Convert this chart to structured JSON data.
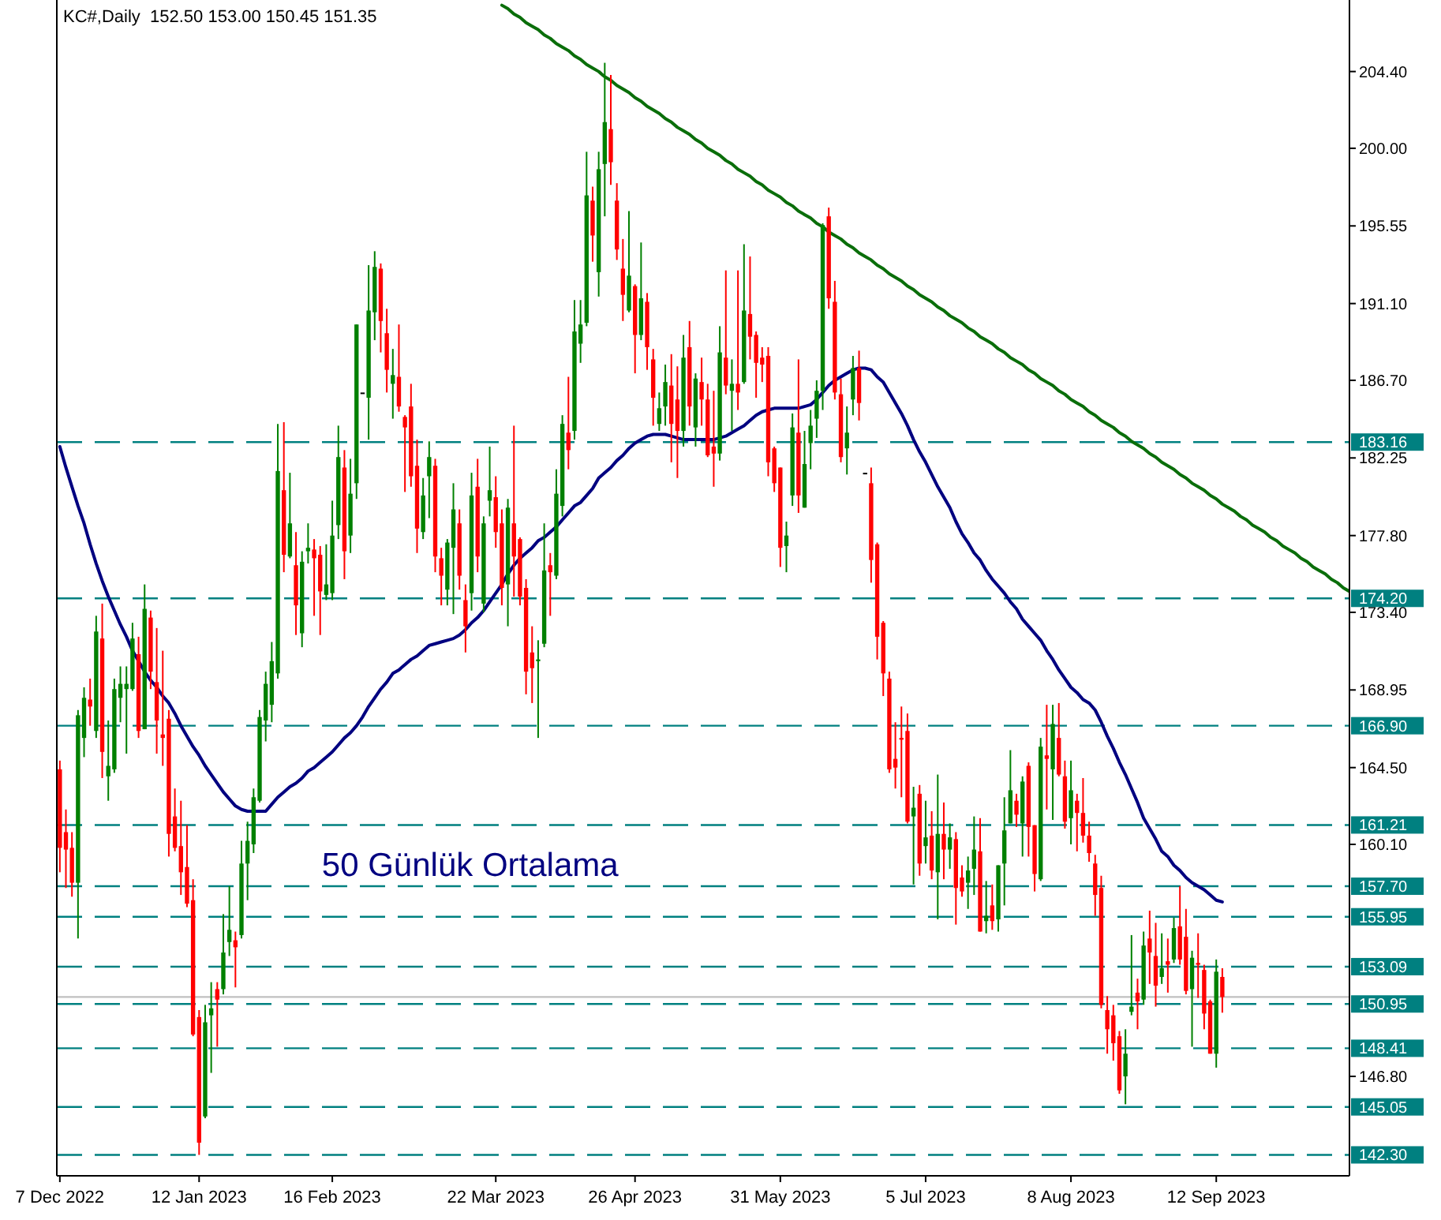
{
  "chart_data": {
    "type": "candlestick",
    "title": "KC#,Daily  152.50 153.00 150.45 151.35",
    "categories": [
      "7 Dec 2022",
      null,
      null,
      null,
      null,
      null,
      null,
      null,
      null,
      null,
      null,
      null,
      null,
      null,
      null,
      null,
      null,
      null,
      null,
      null,
      null,
      null,
      null,
      "12 Jan 2023",
      null,
      null,
      null,
      null,
      null,
      null,
      null,
      null,
      null,
      null,
      null,
      null,
      null,
      null,
      null,
      null,
      null,
      null,
      null,
      null,
      null,
      "16 Feb 2023",
      null,
      null,
      null,
      null,
      null,
      null,
      null,
      null,
      null,
      null,
      null,
      null,
      null,
      null,
      null,
      null,
      null,
      null,
      null,
      null,
      null,
      null,
      null,
      null,
      null,
      null,
      "22 Mar 2023",
      null,
      null,
      null,
      null,
      null,
      null,
      null,
      null,
      null,
      null,
      null,
      null,
      null,
      null,
      null,
      null,
      null,
      null,
      null,
      null,
      null,
      null,
      "26 Apr 2023",
      null,
      null,
      null,
      null,
      null,
      null,
      null,
      null,
      null,
      null,
      null,
      null,
      null,
      null,
      null,
      null,
      null,
      null,
      null,
      null,
      null,
      null,
      null,
      "31 May 2023",
      null,
      null,
      null,
      null,
      null,
      null,
      null,
      null,
      null,
      null,
      null,
      null,
      null,
      null,
      null,
      null,
      null,
      null,
      null,
      null,
      null,
      null,
      null,
      "5 Jul 2023",
      null,
      null,
      null,
      null,
      null,
      null,
      null,
      null,
      null,
      null,
      null,
      null,
      null,
      null,
      null,
      null,
      null,
      null,
      null,
      null,
      null,
      null,
      null,
      "8 Aug 2023",
      null,
      null,
      null,
      null,
      null,
      null,
      null,
      null,
      null,
      null,
      null,
      null,
      null,
      null,
      null,
      null,
      null,
      null,
      null,
      null,
      null,
      null,
      null,
      "12 Sep 2023",
      null,
      null,
      null,
      null,
      null,
      null,
      null,
      null,
      null,
      null,
      null,
      null,
      null,
      null,
      null,
      null,
      null,
      null,
      null,
      null,
      null,
      null
    ],
    "ohlc": [
      [
        164.4,
        164.9,
        158.5,
        159.9
      ],
      [
        160.8,
        162.1,
        157.6,
        159.8
      ],
      [
        159.9,
        160.8,
        157.1,
        157.9
      ],
      [
        157.9,
        167.8,
        154.7,
        167.5
      ],
      [
        166.2,
        169.1,
        165.1,
        168.5
      ],
      [
        168.4,
        169.6,
        166.9,
        168.0
      ],
      [
        166.6,
        173.2,
        166.2,
        172.3
      ],
      [
        171.9,
        173.9,
        163.9,
        165.4
      ],
      [
        164.0,
        167.2,
        162.6,
        164.6
      ],
      [
        164.4,
        169.6,
        164.2,
        169.0
      ],
      [
        168.5,
        170.3,
        167.1,
        169.3
      ],
      [
        169.0,
        170.3,
        165.3,
        169.3
      ],
      [
        169.0,
        172.8,
        168.9,
        171.9
      ],
      [
        171.0,
        172.0,
        166.2,
        166.6
      ],
      [
        166.7,
        175.0,
        166.7,
        173.6
      ],
      [
        173.1,
        173.5,
        169.0,
        170.0
      ],
      [
        169.4,
        172.5,
        165.3,
        167.2
      ],
      [
        166.4,
        171.2,
        164.6,
        166.2
      ],
      [
        167.3,
        167.8,
        159.4,
        160.7
      ],
      [
        161.7,
        163.3,
        159.7,
        159.9
      ],
      [
        160.0,
        162.6,
        157.2,
        158.5
      ],
      [
        158.8,
        161.2,
        156.5,
        156.7
      ],
      [
        156.9,
        158.1,
        149.1,
        149.2
      ],
      [
        150.2,
        150.6,
        142.3,
        143.0
      ],
      [
        144.5,
        150.9,
        144.4,
        149.9
      ],
      [
        150.3,
        152.2,
        147.0,
        150.7
      ],
      [
        151.8,
        152.2,
        148.5,
        151.2
      ],
      [
        151.8,
        156.1,
        151.5,
        153.9
      ],
      [
        154.5,
        157.7,
        153.7,
        155.2
      ],
      [
        154.6,
        155.1,
        151.9,
        154.2
      ],
      [
        154.9,
        160.3,
        154.7,
        159.0
      ],
      [
        159.0,
        161.4,
        156.9,
        160.3
      ],
      [
        160.1,
        163.3,
        159.6,
        162.8
      ],
      [
        162.6,
        167.8,
        162.5,
        167.4
      ],
      [
        167.2,
        170.0,
        166.0,
        169.3
      ],
      [
        168.1,
        171.7,
        167.1,
        170.6
      ],
      [
        169.9,
        184.2,
        169.6,
        181.5
      ],
      [
        180.4,
        184.3,
        175.7,
        176.7
      ],
      [
        176.6,
        181.4,
        176.5,
        178.5
      ],
      [
        176.1,
        178.0,
        172.1,
        173.8
      ],
      [
        172.2,
        176.9,
        171.4,
        176.3
      ],
      [
        176.9,
        178.5,
        176.2,
        177.1
      ],
      [
        177.0,
        177.6,
        173.2,
        176.5
      ],
      [
        176.7,
        177.2,
        172.1,
        174.6
      ],
      [
        174.4,
        177.3,
        174.1,
        175.0
      ],
      [
        174.5,
        179.8,
        174.1,
        177.8
      ],
      [
        178.4,
        184.1,
        177.6,
        182.3
      ],
      [
        181.7,
        182.7,
        175.3,
        176.9
      ],
      [
        177.8,
        182.2,
        176.8,
        180.2
      ],
      [
        180.8,
        189.9,
        179.9,
        189.9
      ],
      [
        186.0,
        186.0,
        186.0,
        186.0
      ],
      [
        185.7,
        193.3,
        183.3,
        190.7
      ],
      [
        190.6,
        194.1,
        189.0,
        193.2
      ],
      [
        193.1,
        193.4,
        188.3,
        190.1
      ],
      [
        189.4,
        190.8,
        186.0,
        187.3
      ],
      [
        186.5,
        188.5,
        184.5,
        187.0
      ],
      [
        186.9,
        189.9,
        184.9,
        185.2
      ],
      [
        184.6,
        184.7,
        180.3,
        184.0
      ],
      [
        185.2,
        186.5,
        180.6,
        181.2
      ],
      [
        181.8,
        183.3,
        176.8,
        178.2
      ],
      [
        178.0,
        181.1,
        177.6,
        180.1
      ],
      [
        181.2,
        183.2,
        178.8,
        182.3
      ],
      [
        181.8,
        182.2,
        175.7,
        176.6
      ],
      [
        176.5,
        177.1,
        173.8,
        175.5
      ],
      [
        174.7,
        177.6,
        173.8,
        177.4
      ],
      [
        177.1,
        180.8,
        173.3,
        179.3
      ],
      [
        178.5,
        179.3,
        174.7,
        175.5
      ],
      [
        174.1,
        175.0,
        171.1,
        172.6
      ],
      [
        174.5,
        181.4,
        173.5,
        180.1
      ],
      [
        180.6,
        182.2,
        175.7,
        176.6
      ],
      [
        173.9,
        178.9,
        173.4,
        178.5
      ],
      [
        179.8,
        182.9,
        178.9,
        180.4
      ],
      [
        180.0,
        181.2,
        177.1,
        178.0
      ],
      [
        178.5,
        179.3,
        173.8,
        174.8
      ],
      [
        175.0,
        179.9,
        172.6,
        179.4
      ],
      [
        178.5,
        184.1,
        174.3,
        176.6
      ],
      [
        177.6,
        177.7,
        173.8,
        174.3
      ],
      [
        174.8,
        175.3,
        168.7,
        170.0
      ],
      [
        171.1,
        172.6,
        168.2,
        170.2
      ],
      [
        170.6,
        171.8,
        166.2,
        170.7
      ],
      [
        171.6,
        178.5,
        171.4,
        175.8
      ],
      [
        176.1,
        176.8,
        173.2,
        175.7
      ],
      [
        175.5,
        181.6,
        175.3,
        180.2
      ],
      [
        179.5,
        184.7,
        178.9,
        184.2
      ],
      [
        183.7,
        186.9,
        181.6,
        182.7
      ],
      [
        183.8,
        191.3,
        183.3,
        189.5
      ],
      [
        188.8,
        191.3,
        187.7,
        189.9
      ],
      [
        190.0,
        199.8,
        189.8,
        197.3
      ],
      [
        197.0,
        197.8,
        193.5,
        195.0
      ],
      [
        192.9,
        199.8,
        191.5,
        198.8
      ],
      [
        199.1,
        204.9,
        196.1,
        201.5
      ],
      [
        201.1,
        204.2,
        197.9,
        199.2
      ],
      [
        197.0,
        198.0,
        193.6,
        194.2
      ],
      [
        193.1,
        194.8,
        190.1,
        191.6
      ],
      [
        190.7,
        196.4,
        190.6,
        192.7
      ],
      [
        192.1,
        192.2,
        187.1,
        189.3
      ],
      [
        189.3,
        194.6,
        189.0,
        191.4
      ],
      [
        191.2,
        191.7,
        187.3,
        188.6
      ],
      [
        187.9,
        188.5,
        184.1,
        185.7
      ],
      [
        184.2,
        186.0,
        183.8,
        185.1
      ],
      [
        185.2,
        187.6,
        184.1,
        186.6
      ],
      [
        186.4,
        188.2,
        182.0,
        184.2
      ],
      [
        185.6,
        187.5,
        181.1,
        183.8
      ],
      [
        183.8,
        189.3,
        182.9,
        188.0
      ],
      [
        188.6,
        190.1,
        184.1,
        185.2
      ],
      [
        184.0,
        187.1,
        182.9,
        186.8
      ],
      [
        186.6,
        188.0,
        184.1,
        185.6
      ],
      [
        185.6,
        186.5,
        182.3,
        182.4
      ],
      [
        182.9,
        186.1,
        180.6,
        182.5
      ],
      [
        182.5,
        189.8,
        182.1,
        188.3
      ],
      [
        188.0,
        193.0,
        185.9,
        186.4
      ],
      [
        186.1,
        187.9,
        183.8,
        186.5
      ],
      [
        186.5,
        193.0,
        185.0,
        186.0
      ],
      [
        186.6,
        194.5,
        186.5,
        190.7
      ],
      [
        190.5,
        193.8,
        187.9,
        189.2
      ],
      [
        189.3,
        189.5,
        185.7,
        187.7
      ],
      [
        188.0,
        188.6,
        186.6,
        187.6
      ],
      [
        188.1,
        188.6,
        181.2,
        182.0
      ],
      [
        182.8,
        182.9,
        180.3,
        180.8
      ],
      [
        181.7,
        181.7,
        176.0,
        177.1
      ],
      [
        177.2,
        178.6,
        175.7,
        177.8
      ],
      [
        180.1,
        184.8,
        179.5,
        184.0
      ],
      [
        183.7,
        187.9,
        179.1,
        180.1
      ],
      [
        179.4,
        183.8,
        179.4,
        181.9
      ],
      [
        183.1,
        185.0,
        181.6,
        184.1
      ],
      [
        184.5,
        186.7,
        183.4,
        186.1
      ],
      [
        186.1,
        195.7,
        185.0,
        195.6
      ],
      [
        196.1,
        196.6,
        190.8,
        191.4
      ],
      [
        191.2,
        192.4,
        185.6,
        186.0
      ],
      [
        185.9,
        186.8,
        182.0,
        182.3
      ],
      [
        182.8,
        185.2,
        181.3,
        183.7
      ],
      [
        185.6,
        188.1,
        184.7,
        187.4
      ],
      [
        187.4,
        188.4,
        184.4,
        185.4
      ],
      [
        181.4,
        181.4,
        181.4,
        181.4
      ],
      [
        180.8,
        181.7,
        175.1,
        176.4
      ],
      [
        177.3,
        177.4,
        170.7,
        172.0
      ],
      [
        172.8,
        172.9,
        168.6,
        169.9
      ],
      [
        169.6,
        170.0,
        164.2,
        164.4
      ],
      [
        165.0,
        167.1,
        163.3,
        164.5
      ],
      [
        166.2,
        168.0,
        162.8,
        166.1
      ],
      [
        166.6,
        167.6,
        161.3,
        161.4
      ],
      [
        161.7,
        163.4,
        157.8,
        162.2
      ],
      [
        163.0,
        163.5,
        158.3,
        159.0
      ],
      [
        160.0,
        162.6,
        159.0,
        160.5
      ],
      [
        160.6,
        162.0,
        158.1,
        158.6
      ],
      [
        158.5,
        164.1,
        155.8,
        160.7
      ],
      [
        160.7,
        162.5,
        158.1,
        159.8
      ],
      [
        159.8,
        161.3,
        158.7,
        160.5
      ],
      [
        160.4,
        160.8,
        155.5,
        157.6
      ],
      [
        158.2,
        158.9,
        157.1,
        157.4
      ],
      [
        157.9,
        159.4,
        156.4,
        158.6
      ],
      [
        158.7,
        161.7,
        157.2,
        159.8
      ],
      [
        159.7,
        161.6,
        155.1,
        155.1
      ],
      [
        155.7,
        158.0,
        155.0,
        156.0
      ],
      [
        156.6,
        157.8,
        155.2,
        155.7
      ],
      [
        155.8,
        158.9,
        155.1,
        158.9
      ],
      [
        159.0,
        162.8,
        156.6,
        160.9
      ],
      [
        161.3,
        165.5,
        161.3,
        163.2
      ],
      [
        162.6,
        163.0,
        161.1,
        161.8
      ],
      [
        161.3,
        164.0,
        159.4,
        163.7
      ],
      [
        164.6,
        164.8,
        159.4,
        161.1
      ],
      [
        161.2,
        161.2,
        157.4,
        158.4
      ],
      [
        158.1,
        166.2,
        158.0,
        165.7
      ],
      [
        165.2,
        168.1,
        162.1,
        165.0
      ],
      [
        164.4,
        168.1,
        161.5,
        167.0
      ],
      [
        166.2,
        168.2,
        164.0,
        164.1
      ],
      [
        164.0,
        164.9,
        161.0,
        161.4
      ],
      [
        161.6,
        164.9,
        160.1,
        163.2
      ],
      [
        162.6,
        163.0,
        159.7,
        161.9
      ],
      [
        161.9,
        163.9,
        160.2,
        160.6
      ],
      [
        160.6,
        161.4,
        159.1,
        159.6
      ],
      [
        159.0,
        159.5,
        156.0,
        157.2
      ],
      [
        157.6,
        158.3,
        150.7,
        150.9
      ],
      [
        150.6,
        151.4,
        148.1,
        149.5
      ],
      [
        150.3,
        150.9,
        147.7,
        148.7
      ],
      [
        149.1,
        149.4,
        145.8,
        146.0
      ],
      [
        146.8,
        149.5,
        145.2,
        148.1
      ],
      [
        150.5,
        154.9,
        150.3,
        150.8
      ],
      [
        151.6,
        152.4,
        149.5,
        151.1
      ],
      [
        151.2,
        155.1,
        150.9,
        154.3
      ],
      [
        154.7,
        156.3,
        152.1,
        153.9
      ],
      [
        153.7,
        155.6,
        150.8,
        152.0
      ],
      [
        152.5,
        155.0,
        152.1,
        153.0
      ],
      [
        153.4,
        154.7,
        151.6,
        153.2
      ],
      [
        153.5,
        155.9,
        153.3,
        155.3
      ],
      [
        155.4,
        157.7,
        153.2,
        153.5
      ],
      [
        154.8,
        156.4,
        151.5,
        151.7
      ],
      [
        151.8,
        154.0,
        148.5,
        153.6
      ],
      [
        153.3,
        155.0,
        151.3,
        153.2
      ],
      [
        152.9,
        153.2,
        149.5,
        150.4
      ],
      [
        151.1,
        151.2,
        148.1,
        148.1
      ],
      [
        148.1,
        153.5,
        147.3,
        152.8
      ],
      [
        152.5,
        153.0,
        150.45,
        151.35
      ],
      null,
      null,
      null,
      null,
      null,
      null,
      null,
      null,
      null,
      null,
      null,
      null,
      null,
      null,
      null,
      null,
      null,
      null,
      null,
      null,
      null
    ],
    "colors": [
      "#ff0000",
      "#ff0000",
      "#ff0000",
      "#008000",
      "#008000",
      "#ff0000",
      "#008000",
      "#ff0000",
      "#008000",
      "#008000",
      "#008000",
      "#008000",
      "#008000",
      "#ff0000",
      "#008000",
      "#ff0000",
      "#ff0000",
      "#ff0000",
      "#ff0000",
      "#ff0000",
      "#ff0000",
      "#ff0000",
      "#ff0000",
      "#ff0000",
      "#008000",
      "#008000",
      "#ff0000",
      "#008000",
      "#008000",
      "#ff0000",
      "#008000",
      "#008000",
      "#008000",
      "#008000",
      "#008000",
      "#008000",
      "#008000",
      "#ff0000",
      "#008000",
      "#ff0000",
      "#008000",
      "#008000",
      "#ff0000",
      "#ff0000",
      "#008000",
      "#008000",
      "#008000",
      "#ff0000",
      "#008000",
      "#008000",
      "#000000",
      "#008000",
      "#008000",
      "#ff0000",
      "#ff0000",
      "#008000",
      "#ff0000",
      "#ff0000",
      "#ff0000",
      "#ff0000",
      "#008000",
      "#008000",
      "#ff0000",
      "#ff0000",
      "#008000",
      "#008000",
      "#ff0000",
      "#ff0000",
      "#008000",
      "#ff0000",
      "#008000",
      "#008000",
      "#ff0000",
      "#ff0000",
      "#008000",
      "#ff0000",
      "#ff0000",
      "#ff0000",
      "#ff0000",
      "#008000",
      "#008000",
      "#ff0000",
      "#008000",
      "#008000",
      "#ff0000",
      "#008000",
      "#008000",
      "#008000",
      "#ff0000",
      "#008000",
      "#008000",
      "#ff0000",
      "#ff0000",
      "#ff0000",
      "#008000",
      "#ff0000",
      "#008000",
      "#ff0000",
      "#ff0000",
      "#008000",
      "#008000",
      "#ff0000",
      "#ff0000",
      "#008000",
      "#ff0000",
      "#008000",
      "#ff0000",
      "#ff0000",
      "#ff0000",
      "#008000",
      "#ff0000",
      "#008000",
      "#ff0000",
      "#008000",
      "#ff0000",
      "#ff0000",
      "#ff0000",
      "#ff0000",
      "#ff0000",
      "#ff0000",
      "#008000",
      "#008000",
      "#ff0000",
      "#008000",
      "#008000",
      "#008000",
      "#008000",
      "#ff0000",
      "#ff0000",
      "#ff0000",
      "#008000",
      "#008000",
      "#ff0000",
      "#000000",
      "#ff0000",
      "#ff0000",
      "#ff0000",
      "#ff0000",
      "#ff0000",
      "#ff0000",
      "#ff0000",
      "#008000",
      "#ff0000",
      "#008000",
      "#ff0000",
      "#008000",
      "#ff0000",
      "#008000",
      "#ff0000",
      "#ff0000",
      "#008000",
      "#008000",
      "#ff0000",
      "#008000",
      "#ff0000",
      "#008000",
      "#008000",
      "#008000",
      "#ff0000",
      "#008000",
      "#ff0000",
      "#ff0000",
      "#008000",
      "#ff0000",
      "#008000",
      "#ff0000",
      "#ff0000",
      "#008000",
      "#ff0000",
      "#ff0000",
      "#ff0000",
      "#ff0000",
      "#ff0000",
      "#ff0000",
      "#ff0000",
      "#ff0000",
      "#008000",
      "#008000",
      "#ff0000",
      "#008000",
      "#ff0000",
      "#ff0000",
      "#008000",
      "#ff0000",
      "#008000",
      "#ff0000",
      "#ff0000",
      "#008000",
      "#ff0000",
      "#ff0000",
      "#ff0000",
      "#008000",
      "#ff0000",
      null,
      null,
      null,
      null,
      null,
      null,
      null,
      null,
      null,
      null,
      null,
      null,
      null,
      null,
      null,
      null,
      null,
      null,
      null,
      null,
      null
    ],
    "series": [
      {
        "type": "line",
        "name": "50 Günlük Ortalama",
        "color": "#000080",
        "values": [
          182.9,
          181.7,
          180.6,
          179.5,
          178.5,
          177.3,
          176.2,
          175.2,
          174.3,
          173.5,
          172.7,
          172.0,
          171.2,
          170.6,
          170.0,
          169.5,
          169.1,
          168.6,
          168.2,
          167.6,
          166.9,
          166.3,
          165.7,
          165.2,
          164.6,
          164.1,
          163.6,
          163.1,
          162.7,
          162.3,
          162.1,
          162.0,
          162.0,
          162.0,
          162.0,
          162.4,
          162.8,
          163.1,
          163.4,
          163.6,
          163.9,
          164.3,
          164.5,
          164.8,
          165.1,
          165.4,
          165.8,
          166.2,
          166.5,
          166.9,
          167.4,
          168.0,
          168.5,
          169.0,
          169.4,
          169.9,
          170.1,
          170.4,
          170.7,
          170.9,
          171.2,
          171.5,
          171.6,
          171.7,
          171.8,
          171.9,
          172.1,
          172.4,
          172.8,
          173.1,
          173.5,
          174.0,
          174.5,
          175.0,
          175.6,
          176.1,
          176.5,
          176.8,
          177.1,
          177.5,
          177.7,
          178.0,
          178.3,
          178.7,
          179.1,
          179.5,
          179.7,
          180.1,
          180.5,
          181.1,
          181.4,
          181.7,
          182.1,
          182.4,
          182.8,
          183.1,
          183.3,
          183.5,
          183.6,
          183.6,
          183.6,
          183.5,
          183.4,
          183.3,
          183.3,
          183.3,
          183.3,
          183.3,
          183.3,
          183.4,
          183.5,
          183.7,
          183.9,
          184.1,
          184.4,
          184.7,
          184.9,
          185.0,
          185.1,
          185.1,
          185.1,
          185.1,
          185.1,
          185.2,
          185.3,
          185.6,
          186.0,
          186.4,
          186.7,
          186.9,
          187.1,
          187.3,
          187.4,
          187.4,
          187.3,
          186.9,
          186.6,
          186.0,
          185.4,
          184.8,
          184.1,
          183.3,
          182.6,
          182.0,
          181.3,
          180.6,
          180.0,
          179.4,
          178.6,
          177.9,
          177.4,
          176.8,
          176.4,
          175.8,
          175.3,
          174.9,
          174.5,
          174.0,
          173.6,
          173.0,
          172.6,
          172.2,
          171.8,
          171.2,
          170.7,
          170.1,
          169.6,
          169.1,
          168.8,
          168.4,
          168.2,
          167.8,
          167.1,
          166.3,
          165.6,
          164.8,
          164.1,
          163.3,
          162.5,
          161.6,
          161.0,
          160.4,
          159.7,
          159.4,
          158.9,
          158.6,
          158.2,
          157.9,
          157.7,
          157.5,
          157.2,
          156.9,
          156.8,
          null,
          null,
          null,
          null,
          null,
          null,
          null,
          null,
          null,
          null,
          null,
          null,
          null,
          null,
          null,
          null,
          null,
          null,
          null,
          null,
          null
        ]
      },
      {
        "type": "line",
        "color": "#0a6e0a",
        "values": [
          null,
          null,
          null,
          null,
          null,
          null,
          null,
          null,
          null,
          null,
          null,
          null,
          null,
          null,
          null,
          null,
          null,
          null,
          null,
          null,
          null,
          null,
          null,
          null,
          null,
          null,
          null,
          null,
          null,
          null,
          null,
          null,
          null,
          null,
          null,
          null,
          null,
          null,
          null,
          null,
          null,
          null,
          null,
          null,
          null,
          null,
          null,
          null,
          null,
          null,
          null,
          null,
          null,
          null,
          null,
          null,
          null,
          null,
          null,
          null,
          null,
          null,
          null,
          null,
          null,
          null,
          null,
          null,
          null,
          null,
          null,
          null,
          null,
          208.2,
          208.0,
          207.7,
          207.5,
          207.2,
          207.0,
          206.8,
          206.5,
          206.3,
          206.0,
          205.8,
          205.6,
          205.3,
          205.1,
          204.8,
          204.6,
          204.4,
          204.1,
          203.9,
          203.6,
          203.4,
          203.2,
          202.9,
          202.7,
          202.4,
          202.2,
          202.0,
          201.7,
          201.5,
          201.2,
          201.0,
          200.8,
          200.5,
          200.3,
          200.0,
          199.8,
          199.6,
          199.3,
          199.1,
          198.8,
          198.6,
          198.4,
          198.1,
          197.9,
          197.6,
          197.4,
          197.2,
          196.9,
          196.7,
          196.4,
          196.2,
          196.0,
          195.7,
          195.5,
          195.2,
          195.0,
          194.8,
          194.5,
          194.3,
          194.0,
          193.8,
          193.6,
          193.3,
          193.1,
          192.8,
          192.6,
          192.4,
          192.1,
          191.9,
          191.6,
          191.4,
          191.2,
          190.9,
          190.7,
          190.4,
          190.2,
          190.0,
          189.7,
          189.5,
          189.2,
          189.0,
          188.8,
          188.5,
          188.3,
          188.0,
          187.8,
          187.6,
          187.3,
          187.1,
          186.8,
          186.6,
          186.4,
          186.1,
          185.9,
          185.6,
          185.4,
          185.2,
          184.9,
          184.7,
          184.4,
          184.2,
          184.0,
          183.7,
          183.5,
          183.2,
          183.0,
          182.8,
          182.5,
          182.3,
          182.0,
          181.8,
          181.6,
          181.3,
          181.1,
          180.8,
          180.6,
          180.4,
          180.1,
          179.9,
          179.6,
          179.4,
          179.2,
          178.9,
          178.7,
          178.4,
          178.2,
          178.0,
          177.7,
          177.5,
          177.2,
          177.0,
          176.8,
          176.5,
          176.3,
          176.0,
          175.8,
          175.6,
          175.3,
          175.1,
          174.8,
          174.6
        ]
      }
    ],
    "ylim": [
      141.1,
      208.5
    ],
    "yticks": [
      {
        "value": 204.4,
        "label": "204.40"
      },
      {
        "value": 200,
        "label": "200.00"
      },
      195.55,
      {
        "value": 191.1,
        "label": "191.10"
      },
      {
        "value": 186.7,
        "label": "186.70"
      },
      182.25,
      {
        "value": 177.8,
        "label": "177.80"
      },
      {
        "value": 173.4,
        "label": "173.40"
      },
      168.95,
      {
        "value": 164.5,
        "label": "164.50"
      },
      {
        "value": 160.1,
        "label": "160.10"
      },
      {
        "value": 146.8,
        "label": "146.80"
      }
    ],
    "ref_lines": [
      {
        "axis": "y",
        "value": 183.16,
        "label": "183.16",
        "color": "#008080",
        "line_style": "dashed"
      },
      {
        "axis": "y",
        "value": 174.2,
        "label": "174.20",
        "color": "#008080",
        "line_style": "dashed"
      },
      {
        "axis": "y",
        "value": 166.9,
        "label": "166.90",
        "color": "#008080",
        "line_style": "dashed"
      },
      {
        "axis": "y",
        "value": 161.21,
        "label": "161.21",
        "color": "#008080",
        "line_style": "dashed"
      },
      {
        "axis": "y",
        "value": 157.7,
        "label": "157.70",
        "color": "#008080",
        "line_style": "dashed"
      },
      {
        "axis": "y",
        "value": 155.95,
        "label": "155.95",
        "color": "#008080",
        "line_style": "dashed"
      },
      {
        "axis": "y",
        "value": 153.09,
        "label": "153.09",
        "color": "#008080",
        "line_style": "dashed"
      },
      {
        "axis": "y",
        "value": 151.35,
        "color": "#c0c0c0",
        "line_style": "solid"
      },
      {
        "axis": "y",
        "value": 150.95,
        "label": "150.95",
        "color": "#008080",
        "line_style": "dashed"
      },
      {
        "axis": "y",
        "value": 148.41,
        "label": "148.41",
        "color": "#008080",
        "line_style": "dashed"
      },
      {
        "axis": "y",
        "value": 145.05,
        "label": "145.05",
        "color": "#008080",
        "line_style": "dashed"
      },
      {
        "axis": "y",
        "value": 142.3,
        "label": "142.30",
        "color": "#008080",
        "line_style": "dashed"
      }
    ]
  }
}
